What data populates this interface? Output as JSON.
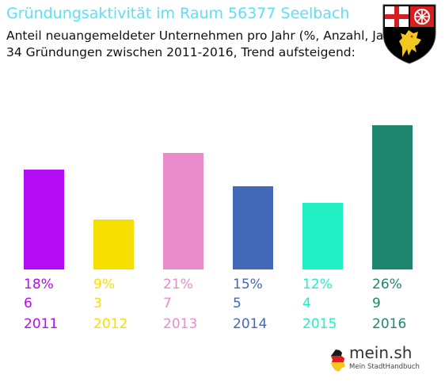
{
  "header": {
    "title": "Gründungsaktivität im Raum 56377 Seelbach",
    "subtitle_line1": "Anteil neuangemeldeter Unternehmen pro Jahr (%, Anzahl, Jahr)",
    "subtitle_line2": "34 Gründungen zwischen 2011-2016, Trend aufsteigend:"
  },
  "crest": {
    "icon": "rhineland-palatinate-coat-of-arms-icon"
  },
  "chart_data": {
    "type": "bar",
    "categories": [
      "2011",
      "2012",
      "2013",
      "2014",
      "2015",
      "2016"
    ],
    "percent_labels": [
      "18%",
      "9%",
      "21%",
      "15%",
      "12%",
      "26%"
    ],
    "values": [
      18,
      9,
      21,
      15,
      12,
      26
    ],
    "counts": [
      6,
      3,
      7,
      5,
      4,
      9
    ],
    "colors": [
      "#b30cf2",
      "#f5df00",
      "#e98ccc",
      "#4468b8",
      "#20f0c4",
      "#20856f"
    ],
    "grid": false,
    "legend": "none",
    "ylim": [
      0,
      26
    ]
  },
  "branding": {
    "name": "mein.sh",
    "tagline": "Mein StadtHandbuch",
    "icon": "germany-map-icon"
  }
}
